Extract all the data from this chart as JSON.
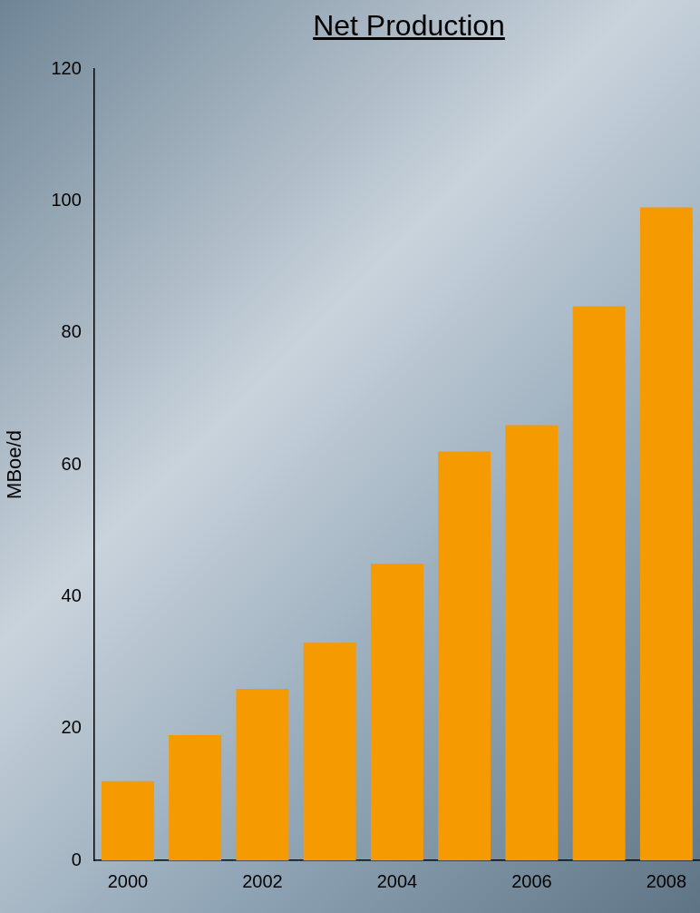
{
  "chart_data": {
    "type": "bar",
    "title": "Net Production",
    "ylabel": "MBoe/d",
    "categories": [
      "2000",
      null,
      "2002",
      null,
      "2004",
      null,
      "2006",
      null,
      "2008"
    ],
    "values": [
      12,
      19,
      26,
      33,
      45,
      62,
      66,
      84,
      99
    ],
    "color": "#f59a00",
    "ylim": [
      0,
      120
    ],
    "yticks": [
      0,
      20,
      40,
      60,
      80,
      100,
      120
    ],
    "grid": false,
    "legend": false
  }
}
